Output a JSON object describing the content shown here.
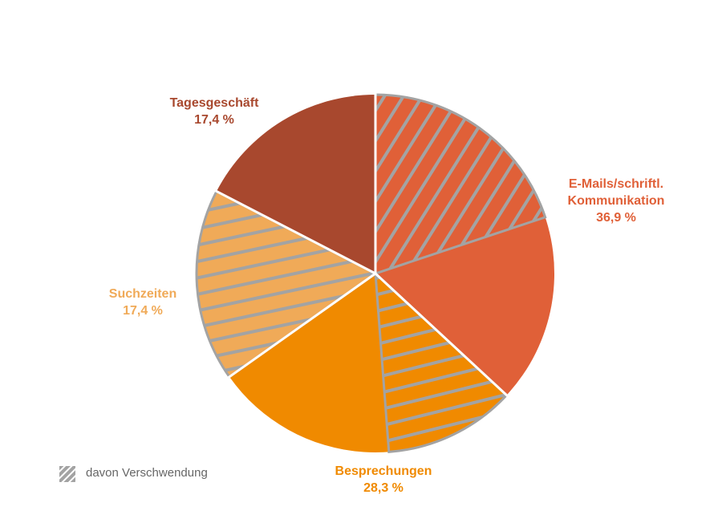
{
  "chart_data": {
    "type": "pie",
    "categories": [
      "E-Mails/schriftl. Kommunikation",
      "Besprechungen",
      "Suchzeiten",
      "Tagesgeschäft"
    ],
    "values": [
      36.9,
      28.3,
      17.4,
      17.4
    ],
    "value_labels": [
      "36,9 %",
      "28,3 %",
      "17,4 %",
      "17,4 %"
    ],
    "colors": [
      "#e06038",
      "#f08a00",
      "#f0aa58",
      "#a8482e"
    ],
    "hatched_values": [
      19.9,
      11.9,
      17.4,
      0
    ],
    "hatch_color": "#a3a3a3",
    "hatch_legend": "davon Verschwendung"
  }
}
